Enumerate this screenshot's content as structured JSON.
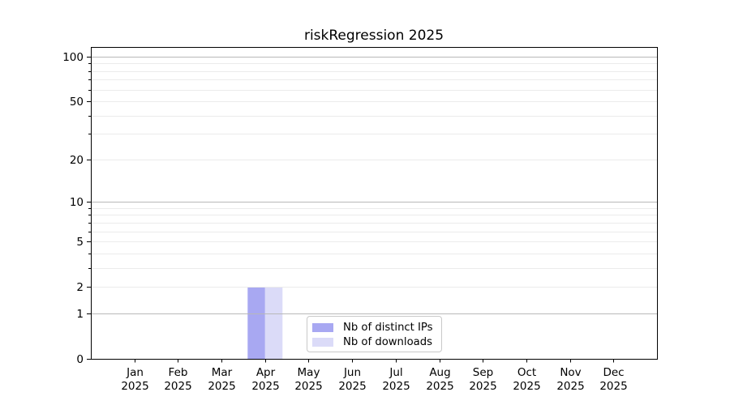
{
  "chart_data": {
    "type": "bar",
    "title": "riskRegression 2025",
    "categories": [
      "Jan",
      "Feb",
      "Mar",
      "Apr",
      "May",
      "Jun",
      "Jul",
      "Aug",
      "Sep",
      "Oct",
      "Nov",
      "Dec"
    ],
    "x_year_label": "2025",
    "series": [
      {
        "name": "Nb of distinct IPs",
        "color": "#a8a8f2",
        "values": [
          0,
          0,
          0,
          2,
          0,
          0,
          0,
          0,
          0,
          0,
          0,
          0
        ]
      },
      {
        "name": "Nb of downloads",
        "color": "#dbdbf8",
        "values": [
          0,
          0,
          0,
          2,
          0,
          0,
          0,
          0,
          0,
          0,
          0,
          0
        ]
      }
    ],
    "xlabel": "",
    "ylabel": "",
    "y_scale": "log1p",
    "ylim": [
      0,
      116
    ],
    "y_ticks": [
      0,
      1,
      2,
      5,
      10,
      20,
      50,
      100
    ],
    "y_minor_ticks": [
      3,
      4,
      6,
      7,
      8,
      9,
      30,
      40,
      60,
      70,
      80,
      90
    ],
    "grid": "on",
    "grid_major_values": [
      1,
      10,
      100
    ],
    "grid_minor_values": [
      2,
      3,
      4,
      5,
      6,
      7,
      8,
      9,
      20,
      30,
      40,
      50,
      60,
      70,
      80,
      90
    ],
    "legend_position": "inside-bottom-center"
  },
  "colors": {
    "background": "#ffffff",
    "spine": "#000000",
    "grid_major": "#b8b8b8",
    "grid_minor": "#ebebeb",
    "text": "#000000",
    "legend_border": "#c9c9c9"
  }
}
